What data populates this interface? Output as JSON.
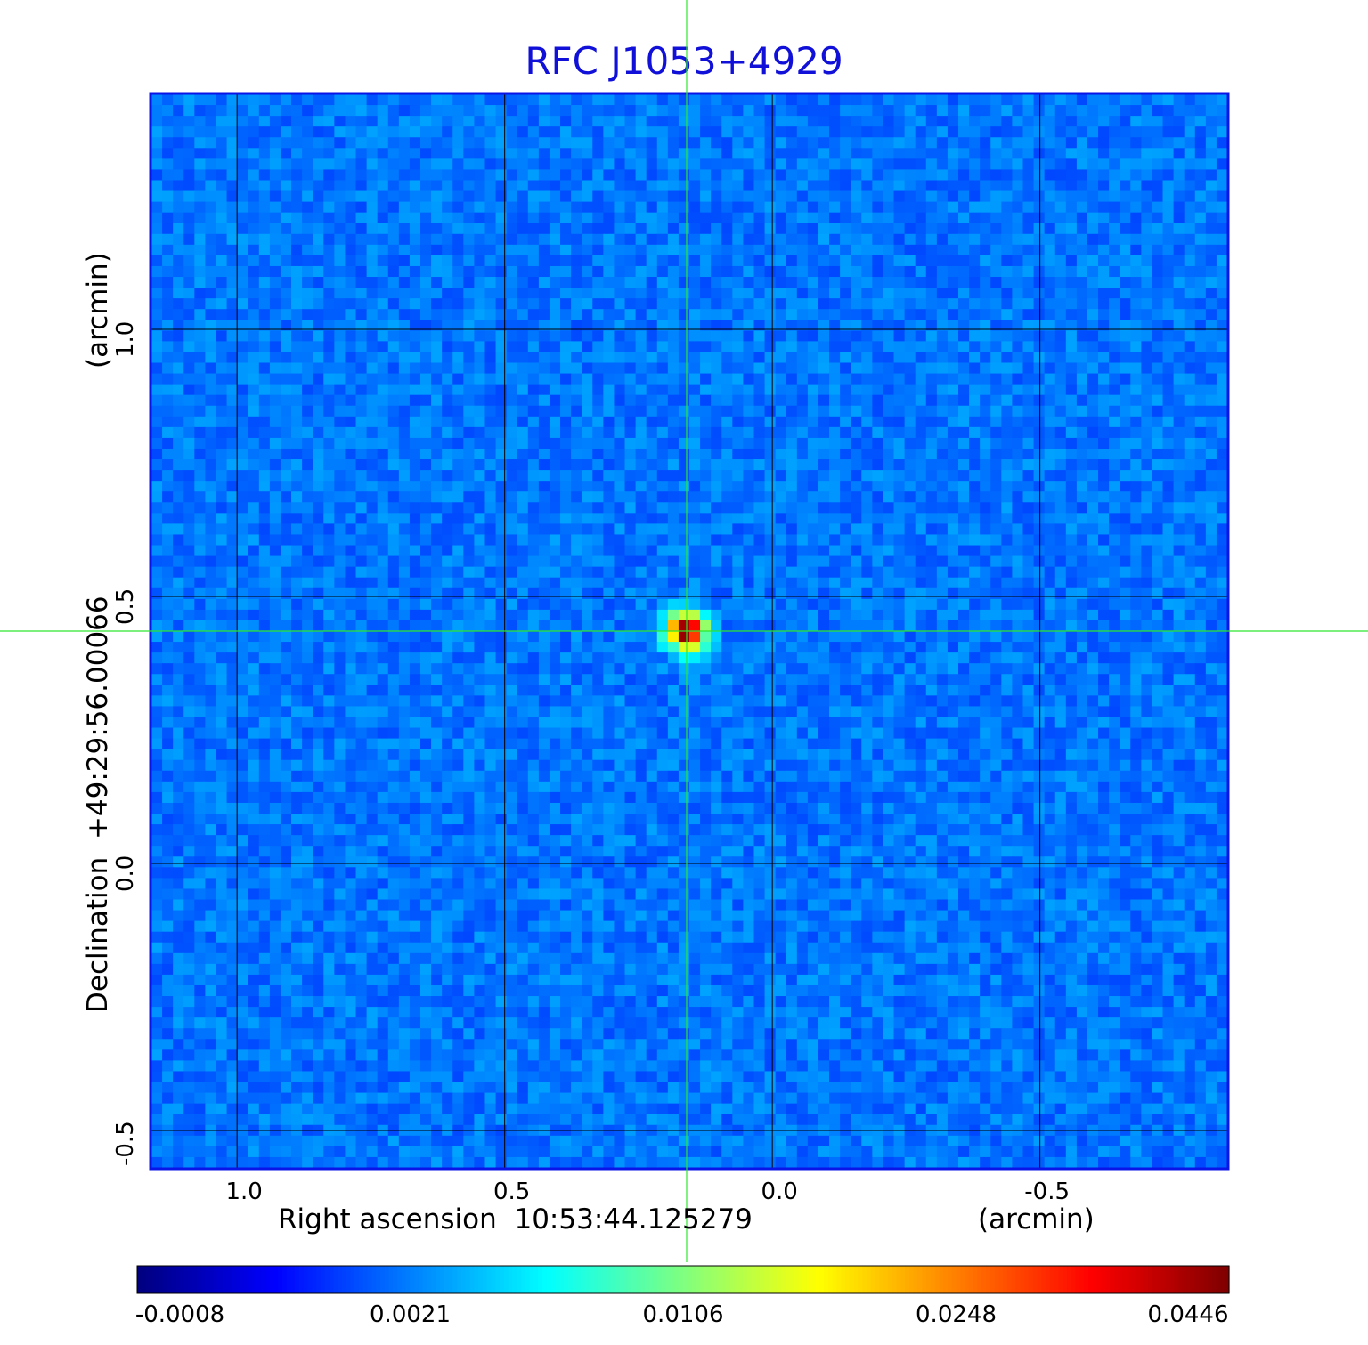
{
  "chart_data": {
    "type": "heatmap",
    "title": "RFC J1053+4929",
    "xlabel": "Right ascension  10:53:44.125279",
    "xunit": "(arcmin)",
    "ylabel": "Declination  +49:29:56.00066",
    "yunit": "(arcmin)",
    "x_ticks": [
      "1.0",
      "0.5",
      "0.0",
      "-0.5"
    ],
    "x_tick_values": [
      1.0,
      0.5,
      0.0,
      -0.5
    ],
    "y_ticks": [
      "1.0",
      "0.5",
      "0.0",
      "-0.5"
    ],
    "y_tick_values": [
      1.0,
      0.5,
      0.0,
      -0.5
    ],
    "xlim": [
      1.16,
      -0.85
    ],
    "ylim": [
      -0.57,
      1.44
    ],
    "grid": true,
    "crosshair": {
      "x": 0.16,
      "y": 0.435
    },
    "peak_value": 0.0446,
    "source_position": {
      "x": 0.16,
      "y": 0.435
    },
    "colorbar": {
      "tick_labels": [
        "-0.0008",
        "0.0021",
        "0.0106",
        "0.0248",
        "0.0446"
      ],
      "colormap": "jet",
      "orientation": "horizontal"
    }
  },
  "colors": {
    "title": "#1010d8",
    "frame": "#0a14e6",
    "crosshair": "#2ee82e",
    "grid": "#000000"
  }
}
